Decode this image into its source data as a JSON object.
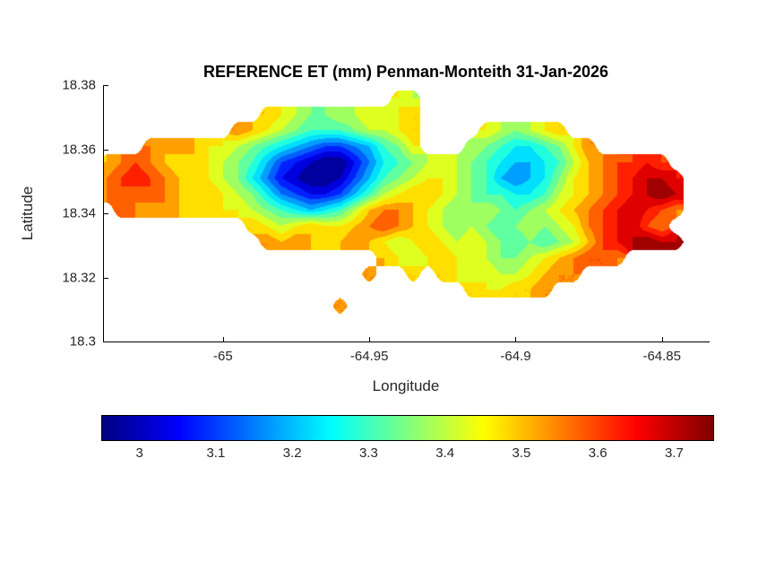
{
  "figure": {
    "background": "#ffffff",
    "title": "REFERENCE ET (mm) Penman-Monteith 31-Jan-2026"
  },
  "colors": {
    "axis": "#000000",
    "tick_label": "#262626",
    "title": "#000000",
    "colormap_name": "jet"
  },
  "chart_data": {
    "type": "heatmap",
    "title": "REFERENCE ET (mm) Penman-Monteith 31-Jan-2026",
    "xlabel": "Longitude",
    "ylabel": "Latitude",
    "xlim": [
      -65.041,
      -64.834
    ],
    "ylim": [
      18.3,
      18.38
    ],
    "xticks": {
      "values": [
        -65,
        -64.95,
        -64.9,
        -64.85
      ],
      "labels": [
        "-65",
        "-64.95",
        "-64.9",
        "-64.85"
      ]
    },
    "yticks": {
      "values": [
        18.38,
        18.36,
        18.34,
        18.32,
        18.3
      ],
      "labels": [
        "18.38",
        "18.36",
        "18.34",
        "18.32",
        "18.3"
      ]
    },
    "colormap": "jet",
    "value_range": [
      2.95,
      3.75
    ],
    "contour_interval": 0.05,
    "colorbar": {
      "orientation": "horizontal",
      "ticks": {
        "values": [
          3,
          3.1,
          3.2,
          3.3,
          3.4,
          3.5,
          3.6,
          3.7
        ],
        "labels": [
          "3",
          "3.1",
          "3.2",
          "3.3",
          "3.4",
          "3.5",
          "3.6",
          "3.7"
        ]
      }
    },
    "grid": {
      "lon_start": -65.045,
      "lon_step": 0.005,
      "lat_start": 18.376,
      "lat_step": 0.005,
      "ncols": 42,
      "nrows": 14,
      "no_data": null,
      "values": [
        [
          null,
          null,
          null,
          null,
          null,
          null,
          null,
          null,
          null,
          null,
          null,
          null,
          null,
          null,
          null,
          null,
          null,
          null,
          null,
          null,
          null,
          3.45,
          3.4,
          null,
          null,
          null,
          null,
          null,
          null,
          null,
          null,
          null,
          null,
          null,
          null,
          null,
          null,
          null,
          null,
          null,
          null,
          null
        ],
        [
          null,
          null,
          null,
          null,
          null,
          null,
          null,
          null,
          null,
          null,
          null,
          null,
          3.5,
          3.45,
          3.4,
          3.35,
          3.35,
          3.4,
          3.4,
          3.45,
          3.4,
          3.45,
          3.5,
          null,
          null,
          null,
          null,
          null,
          null,
          null,
          null,
          null,
          null,
          null,
          null,
          null,
          null,
          null,
          null,
          null,
          null,
          null
        ],
        [
          null,
          null,
          null,
          null,
          null,
          null,
          null,
          null,
          null,
          null,
          3.55,
          3.5,
          3.45,
          3.4,
          3.35,
          3.3,
          3.3,
          3.3,
          3.35,
          3.4,
          3.4,
          3.45,
          3.5,
          null,
          null,
          null,
          null,
          3.45,
          3.4,
          3.35,
          3.4,
          3.45,
          3.5,
          null,
          null,
          null,
          null,
          null,
          null,
          null,
          null,
          null
        ],
        [
          null,
          null,
          null,
          null,
          3.55,
          3.5,
          3.55,
          3.5,
          3.45,
          3.45,
          3.4,
          3.35,
          3.3,
          3.25,
          3.2,
          3.15,
          3.1,
          3.1,
          3.15,
          3.2,
          3.3,
          3.35,
          3.45,
          null,
          null,
          null,
          3.4,
          3.35,
          3.3,
          3.25,
          3.25,
          3.3,
          3.35,
          3.45,
          3.55,
          null,
          null,
          null,
          null,
          null,
          null,
          null
        ],
        [
          null,
          3.5,
          3.55,
          3.6,
          3.55,
          3.5,
          3.45,
          3.5,
          3.45,
          3.4,
          3.35,
          3.3,
          3.2,
          3.1,
          3.05,
          3.0,
          2.95,
          2.95,
          3.05,
          3.15,
          3.25,
          3.3,
          3.35,
          3.4,
          3.45,
          3.4,
          3.35,
          3.3,
          3.25,
          3.2,
          3.2,
          3.25,
          3.3,
          3.4,
          3.5,
          3.55,
          3.6,
          3.6,
          3.65,
          3.6,
          null,
          null
        ],
        [
          null,
          3.55,
          3.6,
          3.65,
          3.6,
          3.55,
          3.5,
          3.45,
          3.45,
          3.4,
          3.35,
          3.25,
          3.15,
          3.05,
          3.0,
          2.95,
          2.95,
          3.0,
          3.1,
          3.2,
          3.3,
          3.35,
          3.4,
          3.45,
          3.45,
          3.4,
          3.35,
          3.3,
          3.2,
          3.15,
          3.2,
          3.25,
          3.35,
          3.45,
          3.5,
          3.55,
          3.6,
          3.65,
          3.7,
          3.7,
          3.65,
          null
        ],
        [
          3.5,
          3.55,
          3.6,
          3.55,
          3.6,
          3.55,
          3.5,
          3.45,
          3.5,
          3.45,
          3.4,
          3.35,
          3.25,
          3.15,
          3.1,
          3.05,
          3.05,
          3.1,
          3.2,
          3.3,
          3.4,
          3.45,
          3.5,
          3.5,
          3.45,
          3.4,
          3.35,
          3.3,
          3.3,
          3.25,
          3.25,
          3.3,
          3.4,
          3.45,
          3.5,
          3.55,
          3.6,
          3.65,
          3.7,
          3.75,
          3.7,
          null
        ],
        [
          null,
          null,
          3.6,
          3.55,
          3.5,
          3.55,
          3.5,
          3.45,
          3.5,
          3.45,
          3.45,
          3.4,
          3.35,
          3.3,
          3.25,
          3.2,
          3.25,
          3.3,
          3.4,
          3.5,
          3.55,
          3.55,
          3.5,
          3.45,
          3.4,
          3.35,
          3.35,
          3.4,
          3.35,
          3.3,
          3.35,
          3.4,
          3.45,
          3.5,
          3.55,
          3.6,
          3.65,
          3.7,
          3.65,
          3.6,
          3.55,
          null
        ],
        [
          null,
          null,
          null,
          null,
          null,
          null,
          null,
          null,
          null,
          null,
          null,
          3.5,
          3.45,
          3.4,
          3.45,
          3.5,
          3.45,
          3.45,
          3.5,
          3.55,
          3.6,
          3.55,
          3.5,
          3.45,
          3.4,
          3.35,
          3.4,
          3.35,
          3.3,
          3.35,
          3.4,
          3.35,
          3.4,
          3.45,
          3.55,
          3.6,
          3.65,
          3.7,
          3.6,
          3.55,
          null,
          null
        ],
        [
          null,
          null,
          null,
          null,
          null,
          null,
          null,
          null,
          null,
          null,
          null,
          null,
          3.55,
          3.5,
          3.55,
          3.5,
          3.45,
          3.5,
          3.55,
          3.5,
          3.45,
          3.4,
          3.45,
          3.5,
          3.45,
          3.4,
          3.45,
          3.4,
          3.35,
          3.3,
          3.35,
          3.3,
          3.35,
          3.4,
          3.5,
          3.6,
          3.65,
          3.7,
          3.75,
          3.7,
          3.7,
          null
        ],
        [
          null,
          null,
          null,
          null,
          null,
          null,
          null,
          null,
          null,
          null,
          null,
          null,
          null,
          null,
          null,
          null,
          null,
          null,
          null,
          null,
          3.5,
          3.45,
          3.4,
          3.45,
          3.5,
          3.45,
          3.45,
          3.4,
          3.35,
          3.35,
          3.4,
          3.45,
          3.5,
          3.55,
          3.6,
          3.6,
          3.55,
          null,
          null,
          null,
          null,
          null
        ],
        [
          null,
          null,
          null,
          null,
          null,
          null,
          null,
          null,
          null,
          null,
          null,
          null,
          null,
          null,
          null,
          null,
          null,
          null,
          null,
          3.55,
          null,
          null,
          3.5,
          null,
          3.5,
          3.45,
          3.4,
          3.45,
          3.4,
          3.4,
          3.45,
          3.5,
          3.55,
          3.55,
          null,
          null,
          null,
          null,
          null,
          null,
          null,
          null
        ],
        [
          null,
          null,
          null,
          null,
          null,
          null,
          null,
          null,
          null,
          null,
          null,
          null,
          null,
          null,
          null,
          null,
          null,
          null,
          null,
          null,
          null,
          null,
          null,
          null,
          null,
          null,
          3.5,
          3.45,
          3.45,
          3.5,
          3.5,
          3.55,
          null,
          null,
          null,
          null,
          null,
          null,
          null,
          null,
          null,
          null
        ],
        [
          null,
          null,
          null,
          null,
          null,
          null,
          null,
          null,
          null,
          null,
          null,
          null,
          null,
          null,
          null,
          null,
          null,
          3.55,
          null,
          null,
          null,
          null,
          null,
          null,
          null,
          null,
          null,
          null,
          null,
          null,
          null,
          null,
          null,
          null,
          null,
          null,
          null,
          null,
          null,
          null,
          null,
          null
        ]
      ]
    }
  }
}
